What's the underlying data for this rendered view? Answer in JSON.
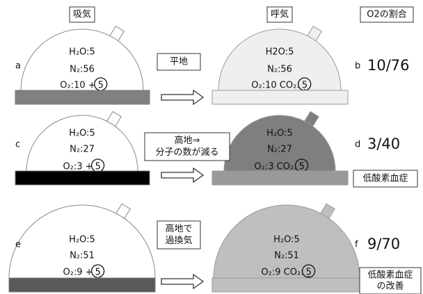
{
  "headers": {
    "inhale": "吸気",
    "exhale": "呼気",
    "ratio": "O2の割合"
  },
  "rows": [
    {
      "left_label": "a",
      "left": {
        "h2o": "H₂O:5",
        "n2": "N₂:56",
        "o2": "O₂:10 +",
        "circled": "5"
      },
      "middle": [
        "平地"
      ],
      "right_label": "b",
      "right": {
        "h2o": "H2O:5",
        "n2": "N₂:56",
        "o2": "O₂:10  CO₂:",
        "circled": "5"
      },
      "ratio": "10/76",
      "note": []
    },
    {
      "left_label": "c",
      "left": {
        "h2o": "H₂O:5",
        "n2": "N₂:27",
        "o2": "O₂:3 +",
        "circled": "5"
      },
      "middle": [
        "高地⇒",
        "分子の数が減る"
      ],
      "right_label": "d",
      "right": {
        "h2o": "H₂O:5",
        "n2": "N₂:27",
        "o2": "O₂:3  CO₂:",
        "circled": "5"
      },
      "ratio": "3/40",
      "note": [
        "低酸素血症"
      ]
    },
    {
      "left_label": "e",
      "left": {
        "h2o": "H₂O:5",
        "n2": "N₂:51",
        "o2": "O₂:9 +",
        "circled": "5"
      },
      "middle": [
        "高地で",
        "過換気"
      ],
      "right_label": "f",
      "right": {
        "h2o": "H₂O:5",
        "n2": "N₂:51",
        "o2": "O₂:9  CO₂:",
        "circled": "5"
      },
      "ratio": "9/70",
      "note": [
        "低酸素血症",
        "の改善"
      ]
    }
  ]
}
